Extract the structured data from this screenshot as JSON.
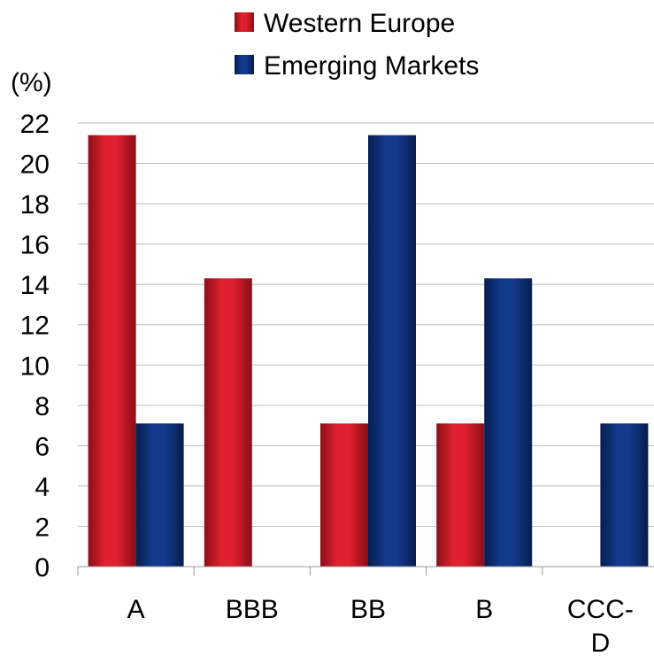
{
  "chart_data": {
    "type": "bar",
    "ylabel": "(%)",
    "ylim": [
      0,
      22
    ],
    "yticks": [
      0,
      2,
      4,
      6,
      8,
      10,
      12,
      14,
      16,
      18,
      20,
      22
    ],
    "grid": true,
    "legend_position": "top",
    "categories": [
      {
        "lines": [
          "A"
        ]
      },
      {
        "lines": [
          "BBB"
        ]
      },
      {
        "lines": [
          "BB"
        ]
      },
      {
        "lines": [
          "B"
        ]
      },
      {
        "lines": [
          "CCC-",
          "D"
        ]
      }
    ],
    "series": [
      {
        "name": "Western Europe",
        "color": "#e0202e",
        "color_dark": "#8a0e18",
        "values": [
          21.4,
          14.3,
          7.1,
          7.1,
          0
        ]
      },
      {
        "name": "Emerging Markets",
        "color": "#143a8c",
        "color_dark": "#061d4f",
        "values": [
          7.1,
          0,
          21.4,
          14.3,
          7.1
        ]
      }
    ]
  }
}
